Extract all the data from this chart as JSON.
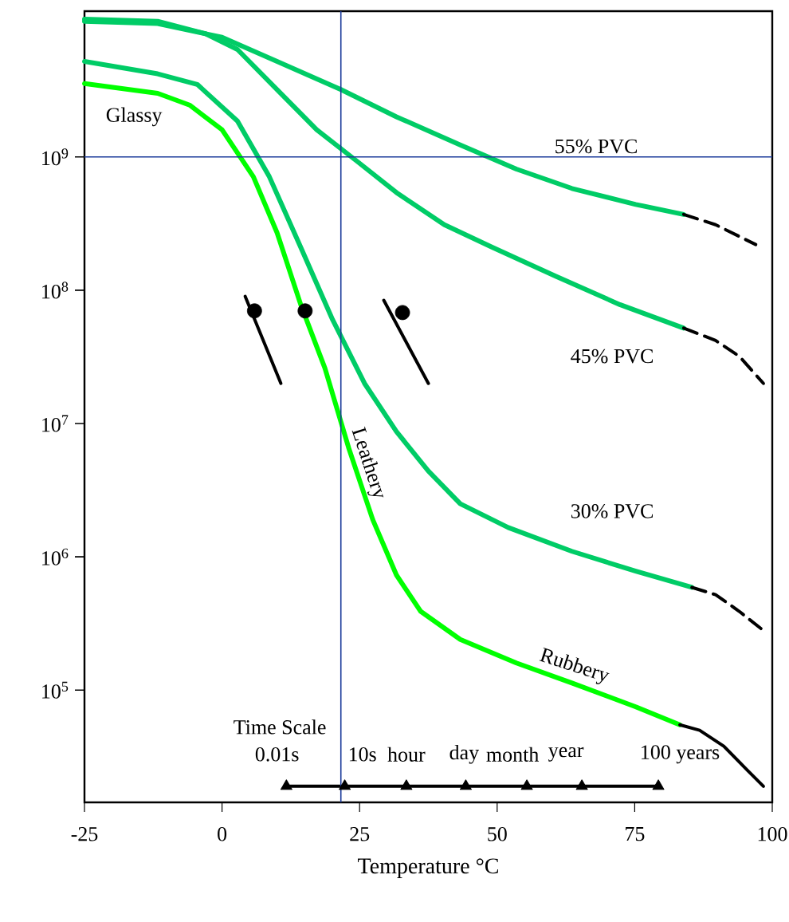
{
  "chart_data": {
    "type": "line",
    "xlabel": "Temperature    °C",
    "log": "y",
    "xlim": [
      -25,
      100
    ],
    "ylim": [
      14400,
      12400000000
    ],
    "xticks": [
      -25,
      0,
      25,
      50,
      75,
      100
    ],
    "yticks": [
      {
        "value": 100000,
        "label": "10$^{5}$"
      },
      {
        "value": 1000000,
        "label": "10$^{6}$"
      },
      {
        "value": 10000000,
        "label": "10$^{7}$"
      },
      {
        "value": 100000000,
        "label": "10$^{8}$"
      },
      {
        "value": 1000000000,
        "label": "10$^{9}$"
      }
    ],
    "ref_lines": [
      {
        "axis": "y",
        "value": 1000000000,
        "color": "#1a3a9a"
      },
      {
        "axis": "x",
        "value": 21.6,
        "color": "#1a3a9a"
      }
    ],
    "series": [
      {
        "color": "#00cc66",
        "x": [
          -25,
          -11.7,
          0,
          10,
          21.6,
          31.7,
          43.3,
          53.5,
          63.6,
          75.2,
          83.9
        ],
        "values": [
          10400000000.0,
          10000000000.0,
          7900000000.0,
          5200000000.0,
          3200000000.0,
          2000000000.0,
          1230000000.0,
          810000000.0,
          580000000.0,
          440000000.0,
          370000000.0
        ]
      },
      {
        "color": "#000000",
        "line_style": "dashed",
        "x": [
          83.9,
          89.7,
          97
        ],
        "values": [
          370000000.0,
          310000000.0,
          220000000.0
        ]
      },
      {
        "color": "#00cc66",
        "x": [
          -25,
          -11.7,
          -3,
          2.8,
          10,
          17.2,
          24.5,
          31.7,
          40.4,
          49.1,
          60.7,
          72.3,
          83.9
        ],
        "values": [
          10800000000.0,
          10400000000.0,
          8400000000.0,
          6400000000.0,
          3200000000.0,
          1600000000.0,
          930000000.0,
          540000000.0,
          310000000.0,
          210000000.0,
          127000000.0,
          78000000.0,
          52000000.0
        ]
      },
      {
        "color": "#000000",
        "line_style": "dashed",
        "x": [
          83.9,
          89.7,
          94,
          98.4
        ],
        "values": [
          52000000.0,
          42000000.0,
          32000000.0,
          20000000.0
        ]
      },
      {
        "color": "#00cc66",
        "x": [
          -25,
          -11.7,
          -4.5,
          2.8,
          8.6,
          14.3,
          20.1,
          25.9,
          31.7,
          37.5,
          43.3,
          52,
          63.6,
          75.2,
          85.4
        ],
        "values": [
          5200000000.0,
          4200000000.0,
          3500000000.0,
          1860000000.0,
          710000000.0,
          210000000.0,
          60000000.0,
          20000000.0,
          8700000.0,
          4400000.0,
          2500000.0,
          1660000.0,
          1100000.0,
          780000.0,
          590000.0
        ]
      },
      {
        "color": "#000000",
        "line_style": "dashed",
        "x": [
          85.4,
          89.7,
          94,
          98.4
        ],
        "values": [
          590000.0,
          520000.0,
          390000.0,
          280000.0
        ]
      },
      {
        "color": "#00ff00",
        "x": [
          -25,
          -11.7,
          -5.9,
          0,
          5.7,
          10,
          14.3,
          18.7,
          23,
          27.4,
          31.7,
          36.1,
          43.3,
          53.5,
          63.6,
          75.2,
          83.2
        ],
        "values": [
          3550000000.0,
          3000000000.0,
          2450000000.0,
          1600000000.0,
          710000000.0,
          270000000.0,
          78000000.0,
          26000000.0,
          6600000.0,
          1900000.0,
          730000.0,
          390000.0,
          240000.0,
          160000.0,
          113000.0,
          75000.0,
          55000.0
        ]
      },
      {
        "color": "#000000",
        "x": [
          83.2,
          86.8,
          91.2,
          95.5,
          98.4
        ],
        "values": [
          55000.0,
          50000.0,
          38000.0,
          25000.0,
          19000.0
        ]
      },
      {
        "color": "#000000",
        "x": [
          4.2,
          10.7
        ],
        "values": [
          90000000.0,
          20000000.0
        ]
      },
      {
        "color": "#000000",
        "x": [
          29.4,
          37.5
        ],
        "values": [
          84000000.0,
          20000000.0
        ]
      },
      {
        "type": "scatter",
        "marker": "circle",
        "color": "#000000",
        "x": [
          5.9,
          15.1,
          32.8
        ],
        "values": [
          70000000.0,
          70000000.0,
          68000000.0
        ]
      },
      {
        "color": "#000000",
        "marker": "triangle",
        "x": [
          11.7,
          22.3,
          33.5,
          44.3,
          55.4,
          65.4,
          79.3
        ],
        "values": [
          19000.0,
          19000.0,
          19000.0,
          19000.0,
          19000.0,
          19000.0,
          19000.0
        ]
      }
    ],
    "annotations": [
      "Glassy",
      "Leathery",
      "Rubbery",
      "55% PVC",
      "45% PVC",
      "30% PVC",
      "Time Scale",
      "0.01s",
      "10s",
      "hour",
      "day",
      "month",
      "year",
      "100 years"
    ]
  }
}
